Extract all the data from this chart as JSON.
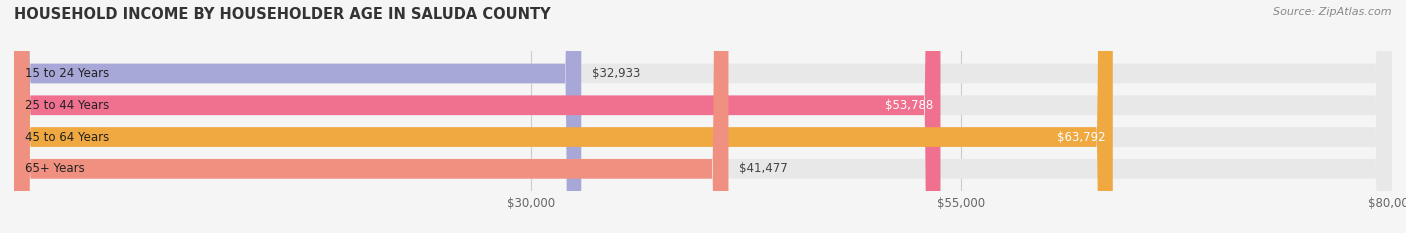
{
  "title": "HOUSEHOLD INCOME BY HOUSEHOLDER AGE IN SALUDA COUNTY",
  "source": "Source: ZipAtlas.com",
  "categories": [
    "15 to 24 Years",
    "25 to 44 Years",
    "45 to 64 Years",
    "65+ Years"
  ],
  "values": [
    32933,
    53788,
    63792,
    41477
  ],
  "bar_colors": [
    "#a8a8d8",
    "#f07090",
    "#f0a840",
    "#f09080"
  ],
  "bar_bg_color": "#e8e8e8",
  "value_labels": [
    "$32,933",
    "$53,788",
    "$63,792",
    "$41,477"
  ],
  "xmin": 0,
  "xmax": 80000,
  "xticks": [
    30000,
    55000,
    80000
  ],
  "xtick_labels": [
    "$30,000",
    "$55,000",
    "$80,000"
  ],
  "background_color": "#f5f5f5",
  "bar_height": 0.62
}
